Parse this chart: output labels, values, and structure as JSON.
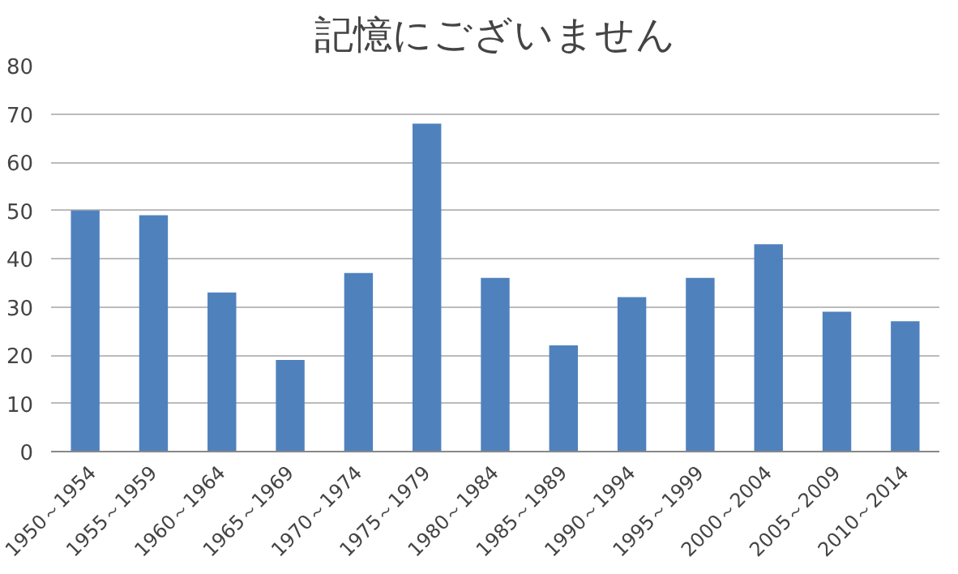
{
  "chart_data": {
    "type": "bar",
    "title": "記憶にございません",
    "categories": [
      "1950～1954",
      "1955～1959",
      "1960～1964",
      "1965～1969",
      "1970～1974",
      "1975～1979",
      "1980～1984",
      "1985～1989",
      "1990～1994",
      "1995～1999",
      "2000～2004",
      "2005～2009",
      "2010～2014"
    ],
    "values": [
      50,
      49,
      33,
      19,
      37,
      68,
      36,
      22,
      32,
      36,
      43,
      29,
      27
    ],
    "color": "#4f81bd",
    "ylim": [
      0,
      80
    ],
    "yticks": [
      0,
      10,
      20,
      30,
      40,
      50,
      60,
      70,
      80
    ],
    "grid": "y"
  }
}
